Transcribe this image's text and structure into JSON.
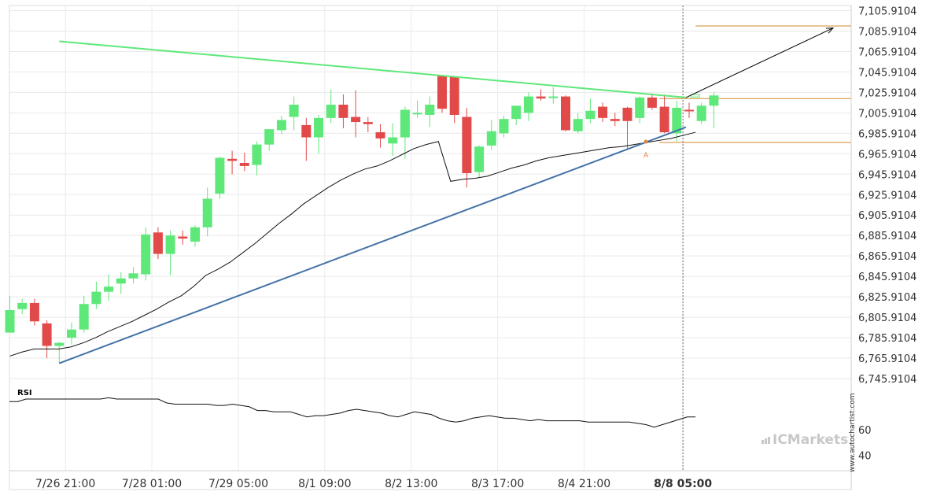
{
  "chart_data": {
    "type": "candlestick",
    "watermark": "www.autochartist.com",
    "brand": "ICMarkets",
    "y_ticks": [
      "7,105.9104",
      "7,085.9104",
      "7,065.9104",
      "7,045.9104",
      "7,025.9104",
      "7,005.9104",
      "6,985.9104",
      "6,965.9104",
      "6,945.9104",
      "6,925.9104",
      "6,905.9104",
      "6,885.9104",
      "6,865.9104",
      "6,845.9104",
      "6,825.9104",
      "6,805.9104",
      "6,785.9104",
      "6,765.9104",
      "6,745.9104"
    ],
    "ylim": [
      6735.9104,
      7110.9104
    ],
    "x_ticks": [
      "7/26 21:00",
      "7/28 01:00",
      "7/29 05:00",
      "8/1 09:00",
      "8/2 13:00",
      "8/3 17:00",
      "8/4 21:00",
      "8/8 05:00"
    ],
    "x_tick_index": [
      4.5,
      11.5,
      18.5,
      25.5,
      32.5,
      39.5,
      46.5,
      54.5
    ],
    "candles": [
      {
        "o": 6790.9,
        "h": 6826.9,
        "l": 6790.9,
        "c": 6812.9
      },
      {
        "o": 6813.9,
        "h": 6823.9,
        "l": 6808.9,
        "c": 6819.9
      },
      {
        "o": 6819.9,
        "h": 6823.9,
        "l": 6797.9,
        "c": 6801.9
      },
      {
        "o": 6799.9,
        "h": 6802.9,
        "l": 6765.9,
        "c": 6777.9
      },
      {
        "o": 6777.9,
        "h": 6781.9,
        "l": 6760.9,
        "c": 6780.9
      },
      {
        "o": 6785.9,
        "h": 6800.9,
        "l": 6778.9,
        "c": 6793.9
      },
      {
        "o": 6793.9,
        "h": 6826.9,
        "l": 6790.9,
        "c": 6818.9
      },
      {
        "o": 6818.9,
        "h": 6840.9,
        "l": 6813.9,
        "c": 6830.9
      },
      {
        "o": 6830.9,
        "h": 6847.9,
        "l": 6821.9,
        "c": 6835.9
      },
      {
        "o": 6838.9,
        "h": 6849.9,
        "l": 6828.9,
        "c": 6843.9
      },
      {
        "o": 6843.9,
        "h": 6854.9,
        "l": 6838.9,
        "c": 6848.9
      },
      {
        "o": 6847.9,
        "h": 6893.9,
        "l": 6841.9,
        "c": 6886.9
      },
      {
        "o": 6888.9,
        "h": 6893.9,
        "l": 6862.9,
        "c": 6867.9
      },
      {
        "o": 6867.9,
        "h": 6890.9,
        "l": 6846.9,
        "c": 6885.9
      },
      {
        "o": 6884.9,
        "h": 6890.9,
        "l": 6876.9,
        "c": 6882.9
      },
      {
        "o": 6879.9,
        "h": 6895.9,
        "l": 6874.9,
        "c": 6893.9
      },
      {
        "o": 6893.9,
        "h": 6932.9,
        "l": 6884.9,
        "c": 6921.9
      },
      {
        "o": 6926.9,
        "h": 6962.9,
        "l": 6921.9,
        "c": 6961.9
      },
      {
        "o": 6960.9,
        "h": 6968.9,
        "l": 6945.9,
        "c": 6958.9
      },
      {
        "o": 6956.9,
        "h": 6966.9,
        "l": 6948.9,
        "c": 6953.9
      },
      {
        "o": 6954.9,
        "h": 6977.9,
        "l": 6944.9,
        "c": 6974.9
      },
      {
        "o": 6974.9,
        "h": 6989.9,
        "l": 6968.9,
        "c": 6989.9
      },
      {
        "o": 6988.9,
        "h": 7002.9,
        "l": 6984.9,
        "c": 6998.9
      },
      {
        "o": 7001.9,
        "h": 7021.9,
        "l": 6988.9,
        "c": 7013.9
      },
      {
        "o": 6993.9,
        "h": 7000.9,
        "l": 6958.9,
        "c": 6981.9
      },
      {
        "o": 6981.9,
        "h": 7003.9,
        "l": 6965.9,
        "c": 7000.9
      },
      {
        "o": 7000.9,
        "h": 7028.9,
        "l": 6995.9,
        "c": 7013.9
      },
      {
        "o": 7013.9,
        "h": 7023.9,
        "l": 6990.9,
        "c": 7000.9
      },
      {
        "o": 7001.9,
        "h": 7027.9,
        "l": 6981.9,
        "c": 6996.9
      },
      {
        "o": 6996.9,
        "h": 7001.9,
        "l": 6986.9,
        "c": 6994.9
      },
      {
        "o": 6986.9,
        "h": 6994.9,
        "l": 6971.9,
        "c": 6980.9
      },
      {
        "o": 6975.9,
        "h": 6995.9,
        "l": 6963.9,
        "c": 6981.9
      },
      {
        "o": 6981.9,
        "h": 7011.9,
        "l": 6960.9,
        "c": 7008.9
      },
      {
        "o": 7004.9,
        "h": 7017.9,
        "l": 7000.9,
        "c": 7005.9
      },
      {
        "o": 7003.9,
        "h": 7021.9,
        "l": 6991.9,
        "c": 7013.9
      },
      {
        "o": 7041.9,
        "h": 7041.9,
        "l": 7005.9,
        "c": 7009.9
      },
      {
        "o": 7040.9,
        "h": 7040.9,
        "l": 6995.9,
        "c": 7003.9
      },
      {
        "o": 7001.9,
        "h": 7010.9,
        "l": 6932.9,
        "c": 6946.9
      },
      {
        "o": 6947.9,
        "h": 6973.9,
        "l": 6942.9,
        "c": 6972.9
      },
      {
        "o": 6973.9,
        "h": 6998.9,
        "l": 6969.9,
        "c": 6987.9
      },
      {
        "o": 6985.9,
        "h": 7002.9,
        "l": 6981.9,
        "c": 6999.9
      },
      {
        "o": 6999.9,
        "h": 7011.9,
        "l": 6993.9,
        "c": 7012.9
      },
      {
        "o": 7005.9,
        "h": 7025.9,
        "l": 6997.9,
        "c": 7021.9
      },
      {
        "o": 7021.9,
        "h": 7028.9,
        "l": 7017.9,
        "c": 7019.9
      },
      {
        "o": 7021.9,
        "h": 7030.9,
        "l": 7014.9,
        "c": 7021.9
      },
      {
        "o": 7021.9,
        "h": 7022.9,
        "l": 6987.9,
        "c": 6988.9
      },
      {
        "o": 6987.9,
        "h": 7005.9,
        "l": 6985.9,
        "c": 6999.9
      },
      {
        "o": 6999.9,
        "h": 7019.9,
        "l": 6995.9,
        "c": 7007.9
      },
      {
        "o": 7011.9,
        "h": 7015.9,
        "l": 6996.9,
        "c": 7000.9
      },
      {
        "o": 6999.9,
        "h": 7005.9,
        "l": 6992.9,
        "c": 6997.9
      },
      {
        "o": 7010.9,
        "h": 7011.9,
        "l": 6970.9,
        "c": 6997.9
      },
      {
        "o": 7000.9,
        "h": 7021.9,
        "l": 6995.9,
        "c": 7020.9
      },
      {
        "o": 7020.9,
        "h": 7024.9,
        "l": 7008.9,
        "c": 7010.9
      },
      {
        "o": 7011.9,
        "h": 7023.9,
        "l": 6985.9,
        "c": 6986.9
      },
      {
        "o": 6985.9,
        "h": 7017.9,
        "l": 6977.9,
        "c": 7010.9
      },
      {
        "o": 7008.9,
        "h": 7015.9,
        "l": 7000.9,
        "c": 7007.9
      },
      {
        "o": 6997.9,
        "h": 7015.9,
        "l": 6994.9,
        "c": 7012.9
      },
      {
        "o": 7012.9,
        "h": 7025.9,
        "l": 6990.9,
        "c": 7022.9
      }
    ],
    "moving_average": [
      6767.9,
      6771.9,
      6774.9,
      6774.9,
      6774.9,
      6776.9,
      6780.9,
      6785.9,
      6791.9,
      6796.9,
      6801.9,
      6807.9,
      6813.9,
      6820.9,
      6826.9,
      6835.9,
      6846.9,
      6852.9,
      6859.9,
      6868.9,
      6877.9,
      6887.9,
      6897.9,
      6906.9,
      6916.9,
      6924.9,
      6932.9,
      6939.9,
      6945.9,
      6950.9,
      6953.9,
      6958.9,
      6964.9,
      6970.9,
      6974.9,
      6977.9,
      6938.9,
      6940.9,
      6941.9,
      6943.9,
      6947.9,
      6951.9,
      6954.9,
      6958.9,
      6961.9,
      6963.9,
      6965.9,
      6967.9,
      6969.9,
      6971.9,
      6972.9,
      6974.9,
      6976.9,
      6978.9,
      6980.9,
      6983.9,
      6986.9
    ],
    "resistance_line": {
      "start": [
        4,
        7075.9
      ],
      "end": [
        55,
        7020.9
      ],
      "color": "#5ee87a"
    },
    "support_line": {
      "start": [
        4,
        6760.9
      ],
      "end": [
        55,
        6991.9
      ],
      "color": "#4472a8"
    },
    "levels": [
      {
        "value": 7090.9,
        "color": "#d08a2e"
      },
      {
        "value": 7019.9,
        "color": "#d08a2e"
      },
      {
        "value": 6976.9,
        "color": "#d08a2e"
      }
    ],
    "forecast_arrow": {
      "start": [
        55,
        7020.9
      ],
      "end": [
        67,
        7088.9
      ],
      "color": "#000000"
    },
    "pattern_marker": {
      "label": "A",
      "index": 51.5,
      "value": 6972.9,
      "color": "#e8823a"
    },
    "rsi": {
      "label": "RSI",
      "ticks": [
        "60",
        "40"
      ],
      "ylim": [
        28,
        92
      ],
      "values": [
        82,
        82,
        84,
        84,
        84,
        84,
        84,
        84,
        84,
        84,
        84,
        84,
        85,
        84,
        84,
        84,
        84,
        84,
        84,
        81,
        80,
        80,
        80,
        80,
        80,
        79,
        79,
        80,
        79,
        78,
        75,
        75,
        74,
        74,
        74,
        72,
        70,
        71,
        71,
        72,
        73,
        75,
        76,
        75,
        74,
        73,
        71,
        70,
        72,
        74,
        73,
        72,
        69,
        67,
        66,
        67,
        69,
        70,
        71,
        70,
        69,
        69,
        68,
        67,
        68,
        67,
        67,
        67,
        67,
        67,
        66,
        66,
        66,
        66,
        66,
        66,
        65,
        64,
        62,
        64,
        66,
        68,
        70,
        70
      ]
    },
    "up_color": "#5ee87a",
    "down_color": "#e24a4a"
  }
}
